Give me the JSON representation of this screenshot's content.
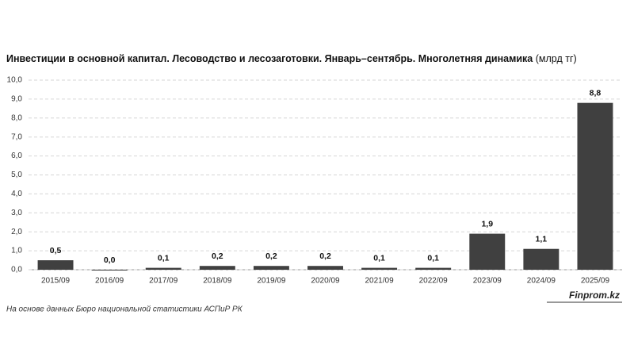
{
  "chart_data": {
    "type": "bar",
    "title": "Инвестиции в основной капитал. Лесоводство и лесозаготовки. Январь–сентябрь. Многолетняя динамика",
    "unit": "(млрд тг)",
    "categories": [
      "2015/09",
      "2016/09",
      "2017/09",
      "2018/09",
      "2019/09",
      "2020/09",
      "2021/09",
      "2022/09",
      "2023/09",
      "2024/09",
      "2025/09"
    ],
    "values": [
      0.5,
      0.0,
      0.1,
      0.2,
      0.2,
      0.2,
      0.1,
      0.1,
      1.9,
      1.1,
      8.8
    ],
    "value_labels": [
      "0,5",
      "0,0",
      "0,1",
      "0,2",
      "0,2",
      "0,2",
      "0,1",
      "0,1",
      "1,9",
      "1,1",
      "8,8"
    ],
    "color": "#404040",
    "ylim": [
      0,
      10
    ],
    "yticks": [
      {
        "value": 0,
        "label": "0,0"
      },
      {
        "value": 1,
        "label": "1,0"
      },
      {
        "value": 2,
        "label": "2,0"
      },
      {
        "value": 3,
        "label": "3,0"
      },
      {
        "value": 4,
        "label": "4,0"
      },
      {
        "value": 5,
        "label": "5,0"
      },
      {
        "value": 6,
        "label": "6,0"
      },
      {
        "value": 7,
        "label": "7,0"
      },
      {
        "value": 8,
        "label": "8,0"
      },
      {
        "value": 9,
        "label": "9,0"
      },
      {
        "value": 10,
        "label": "10,0"
      }
    ],
    "grid": true,
    "source": "На основе данных Бюро национальной статистики АСПиР РК",
    "brand": "Finprom.kz"
  }
}
